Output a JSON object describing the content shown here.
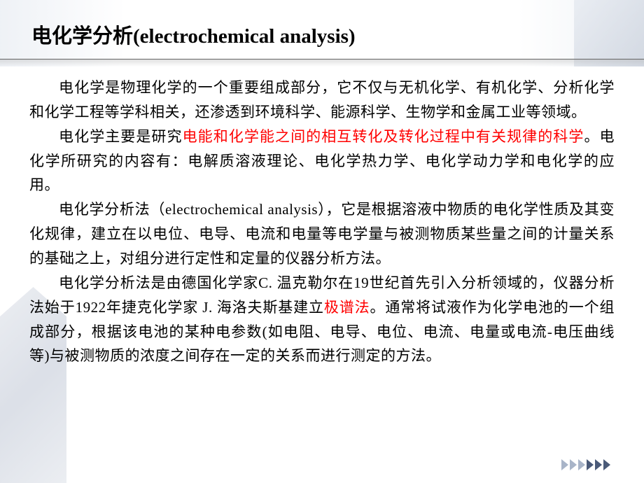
{
  "title": "电化学分析(electrochemical analysis)",
  "paragraphs": {
    "p1_part1": "电化学是物理化学的一个重要组成部分，它不仅与无机化学、有机化学、分析化学和化学工程等学科相关，还渗透到环境科学、能源科学、生物学和金属工业等领域。",
    "p2_part1": "电化学主要是研究",
    "p2_red": "电能和化学能之间的相互转化及转化过程中有关规律的科学",
    "p2_part2": "。电化学所研究的内容有：电解质溶液理论、电化学热力学、电化学动力学和电化学的应用。",
    "p3": "电化学分析法（electrochemical analysis），它是根据溶液中物质的电化学性质及其变化规律，建立在以电位、电导、电流和电量等电学量与被测物质某些量之间的计量关系的基础之上，对组分进行定性和定量的仪器分析方法。",
    "p4_part1": "电化学分析法是由德国化学家C. 温克勒尔在19世纪首先引入分析领域的，仪器分析法始于1922年捷克化学家 J. 海洛夫斯基建立",
    "p4_red": "极谱法",
    "p4_part2": "。通常将试液作为化学电池的一个组成部分，根据该电池的某种电参数(如电阻、电导、电位、电流、电量或电流-电压曲线等)与被测物质的浓度之间存在一定的关系而进行测定的方法。"
  },
  "colors": {
    "text": "#000000",
    "highlight": "#ff0000",
    "background": "#ffffff",
    "arrow_light": "#a8b4c8",
    "arrow_dark": "#4a5a78"
  },
  "typography": {
    "title_size": 29,
    "body_size": 21,
    "line_height": 1.66
  }
}
